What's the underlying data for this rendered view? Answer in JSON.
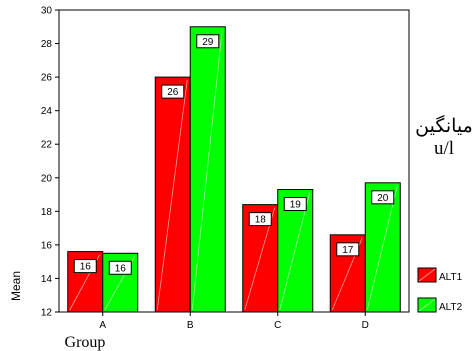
{
  "chart_data": {
    "type": "bar",
    "categories": [
      "A",
      "B",
      "C",
      "D"
    ],
    "series": [
      {
        "name": "ALT1",
        "values": [
          15.6,
          26.0,
          18.4,
          16.6
        ],
        "labels": [
          "16",
          "26",
          "18",
          "17"
        ],
        "color": "#ff0000"
      },
      {
        "name": "ALT2",
        "values": [
          15.5,
          29.0,
          19.3,
          19.7
        ],
        "labels": [
          "16",
          "29",
          "19",
          "20"
        ],
        "color": "#00ff00"
      }
    ],
    "xlabel": "Group",
    "ylabel": "Mean",
    "ylim": [
      12,
      30
    ],
    "yticks": [
      12,
      14,
      16,
      18,
      20,
      22,
      24,
      26,
      28,
      30
    ],
    "legend_position": "bottom-right",
    "grid": false,
    "side_annotation": [
      "میانگین",
      "u/l"
    ]
  }
}
